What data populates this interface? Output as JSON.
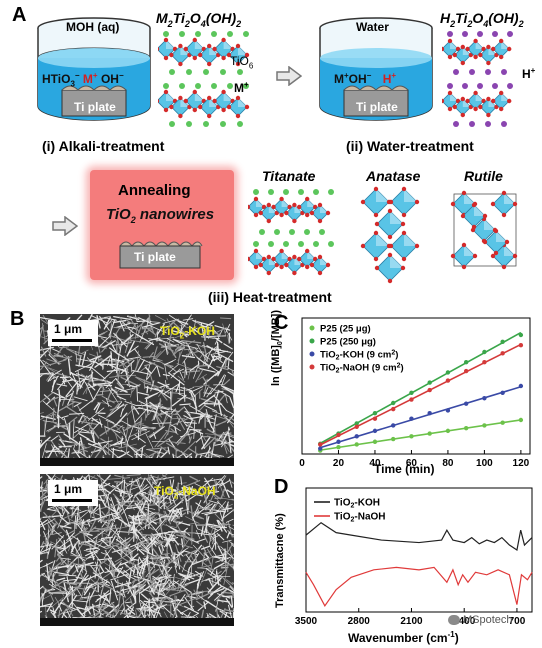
{
  "panelA": {
    "label": "A",
    "beaker1": {
      "solution": "MOH (aq)",
      "ion_left": "HTiO",
      "ion_left_sup": "3",
      "ion_left_sup2": "−",
      "ion_mid": "M",
      "ion_mid_sup": "+",
      "ion_right": "OH",
      "ion_right_sup": "−",
      "plate": "Ti plate"
    },
    "structure1": {
      "formula": "M2Ti2O4(OH)2",
      "label_tio6": "TiO",
      "label_tio6_sub": "6",
      "label_m": "M",
      "label_m_sup": "+"
    },
    "caption1": "(i) Alkali-treatment",
    "beaker2": {
      "solution": "Water",
      "ion_left": "M",
      "ion_left_sup": "+",
      "ion_left2": "OH",
      "ion_left2_sup": "−",
      "ion_right": "H",
      "ion_right_sup": "+",
      "plate": "Ti plate"
    },
    "structure2": {
      "formula": "H2Ti2O4(OH)2",
      "label_h": "H",
      "label_h_sup": "+"
    },
    "caption2": "(ii) Water-treatment",
    "annealing": {
      "title": "Annealing",
      "subtitle_pre": "TiO",
      "subtitle_sub": "2",
      "subtitle_post": " nanowires",
      "plate": "Ti plate"
    },
    "phases": [
      "Titanate",
      "Anatase",
      "Rutile"
    ],
    "caption3": "(iii) Heat-treatment",
    "colors": {
      "octahedron": "#59c4e6",
      "green_atom": "#5cc65c",
      "red_atom": "#d42a2a",
      "purple_atom": "#8a45b0",
      "annealing_bg": "#f47c7c",
      "water": "#2aa7e0"
    }
  },
  "panelB": {
    "label": "B",
    "scale": "1 μm",
    "top_label_pre": "TiO",
    "top_label_sub": "2",
    "top_label_post": "-KOH",
    "bottom_label_pre": "TiO",
    "bottom_label_sub": "2",
    "bottom_label_post": "-NaOH"
  },
  "panelC": {
    "label": "C",
    "chart_data": {
      "type": "scatter",
      "xlabel": "Time (min)",
      "ylabel": "ln ([MB]0/[MB])",
      "xlim": [
        0,
        125
      ],
      "ylim": [
        0,
        2.0
      ],
      "xticks": [
        0,
        20,
        40,
        60,
        80,
        100,
        120
      ],
      "series": [
        {
          "name": "P25 (25 μg)",
          "color": "#6cc24a",
          "x": [
            10,
            20,
            30,
            40,
            50,
            60,
            70,
            80,
            90,
            100,
            110,
            120
          ],
          "y": [
            0.05,
            0.1,
            0.14,
            0.18,
            0.22,
            0.26,
            0.3,
            0.34,
            0.38,
            0.42,
            0.46,
            0.5
          ]
        },
        {
          "name": "P25 (250 μg)",
          "color": "#3aa64a",
          "x": [
            10,
            20,
            30,
            40,
            50,
            60,
            70,
            80,
            90,
            100,
            110,
            120
          ],
          "y": [
            0.15,
            0.3,
            0.45,
            0.6,
            0.75,
            0.9,
            1.05,
            1.2,
            1.35,
            1.5,
            1.65,
            1.75
          ]
        },
        {
          "name": "TiO2-KOH (9 cm2)",
          "color": "#3a4aa6",
          "x": [
            10,
            20,
            30,
            40,
            50,
            60,
            70,
            80,
            90,
            100,
            110,
            120
          ],
          "y": [
            0.08,
            0.18,
            0.26,
            0.34,
            0.42,
            0.52,
            0.6,
            0.64,
            0.74,
            0.82,
            0.9,
            1.0
          ]
        },
        {
          "name": "TiO2-NaOH (9 cm2)",
          "color": "#d43a3a",
          "x": [
            10,
            20,
            30,
            40,
            50,
            60,
            70,
            80,
            90,
            100,
            110,
            120
          ],
          "y": [
            0.14,
            0.28,
            0.4,
            0.52,
            0.66,
            0.8,
            0.94,
            1.08,
            1.22,
            1.35,
            1.48,
            1.6
          ]
        }
      ],
      "legend": [
        {
          "pre": "P25 (25 μg)",
          "sub": "",
          "post": "",
          "sup": "",
          "tail": ""
        },
        {
          "pre": "P25 (250 μg)",
          "sub": "",
          "post": "",
          "sup": "",
          "tail": ""
        },
        {
          "pre": "TiO",
          "sub": "2",
          "post": "-KOH (9 cm",
          "sup": "2",
          "tail": ")"
        },
        {
          "pre": "TiO",
          "sub": "2",
          "post": "-NaOH (9 cm",
          "sup": "2",
          "tail": ")"
        }
      ],
      "legend_placement": "top-left"
    }
  },
  "panelD": {
    "label": "D",
    "chart_data": {
      "type": "line",
      "xlabel": "Wavenumber (cm-1)",
      "ylabel": "Transmittacne (%)",
      "xticks": [
        3500,
        2800,
        2100,
        1400,
        700
      ],
      "xlim": [
        3500,
        500
      ],
      "legend": [
        {
          "pre": "TiO",
          "sub": "2",
          "post": "-KOH",
          "color": "#222222"
        },
        {
          "pre": "TiO",
          "sub": "2",
          "post": "-NaOH",
          "color": "#e03a3a"
        }
      ],
      "legend_placement": "top-left"
    },
    "watermark": "MSpotech"
  }
}
